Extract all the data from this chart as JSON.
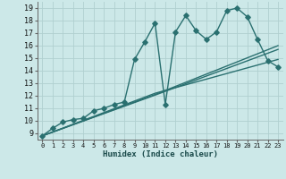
{
  "xlabel": "Humidex (Indice chaleur)",
  "bg_color": "#cce8e8",
  "grid_color": "#b0d0d0",
  "line_color": "#2a7070",
  "xlim": [
    -0.5,
    23.5
  ],
  "ylim": [
    8.5,
    19.5
  ],
  "xticks": [
    0,
    1,
    2,
    3,
    4,
    5,
    6,
    7,
    8,
    9,
    10,
    11,
    12,
    13,
    14,
    15,
    16,
    17,
    18,
    19,
    20,
    21,
    22,
    23
  ],
  "yticks": [
    9,
    10,
    11,
    12,
    13,
    14,
    15,
    16,
    17,
    18,
    19
  ],
  "line1_x": [
    0,
    1,
    2,
    3,
    4,
    5,
    6,
    7,
    8,
    9,
    10,
    11,
    12,
    13,
    14,
    15,
    16,
    17,
    18,
    19,
    20,
    21,
    22,
    23
  ],
  "line1_y": [
    8.8,
    9.4,
    9.9,
    10.1,
    10.2,
    10.8,
    11.0,
    11.3,
    11.5,
    14.9,
    16.3,
    17.8,
    11.3,
    17.1,
    18.4,
    17.2,
    16.5,
    17.1,
    18.8,
    19.0,
    18.3,
    16.5,
    14.8,
    14.3
  ],
  "line2_x": [
    0,
    11,
    23
  ],
  "line2_y": [
    8.8,
    12.1,
    16.0
  ],
  "line3_x": [
    0,
    11,
    23
  ],
  "line3_y": [
    8.8,
    12.05,
    15.7
  ],
  "line4_x": [
    0,
    11,
    23
  ],
  "line4_y": [
    8.8,
    12.2,
    14.9
  ],
  "marker": "D",
  "markersize": 2.8,
  "linewidth": 1.0
}
